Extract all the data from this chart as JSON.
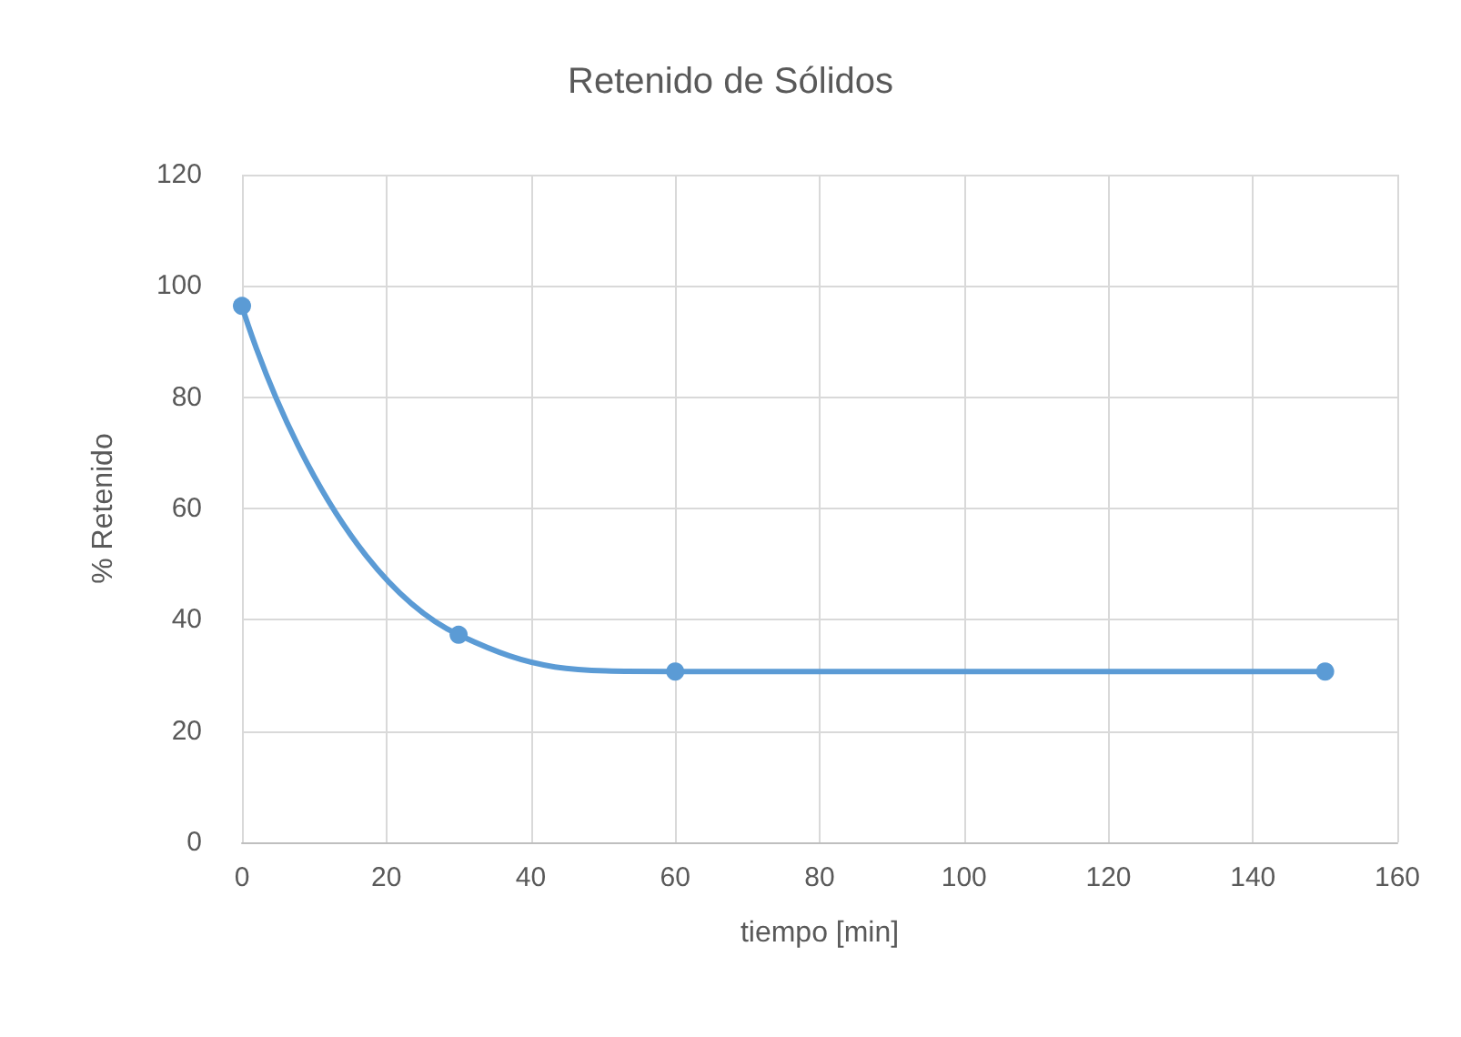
{
  "chart_data": {
    "type": "line",
    "title": "Retenido de Sólidos",
    "xlabel": "tiempo [min]",
    "ylabel": "% Retenido",
    "x": [
      0,
      30,
      60,
      150
    ],
    "series": [
      {
        "color": "#5b9bd5",
        "values": [
          96.4,
          37.3,
          30.7,
          30.7
        ]
      }
    ],
    "xlim": [
      0,
      160
    ],
    "xticks": [
      0,
      20,
      40,
      60,
      80,
      100,
      120,
      140,
      160
    ],
    "ylim": [
      0,
      120
    ],
    "yticks": [
      0,
      20,
      40,
      60,
      80,
      100,
      120
    ],
    "grid": true,
    "marker": "circle",
    "line_style": "solid"
  }
}
